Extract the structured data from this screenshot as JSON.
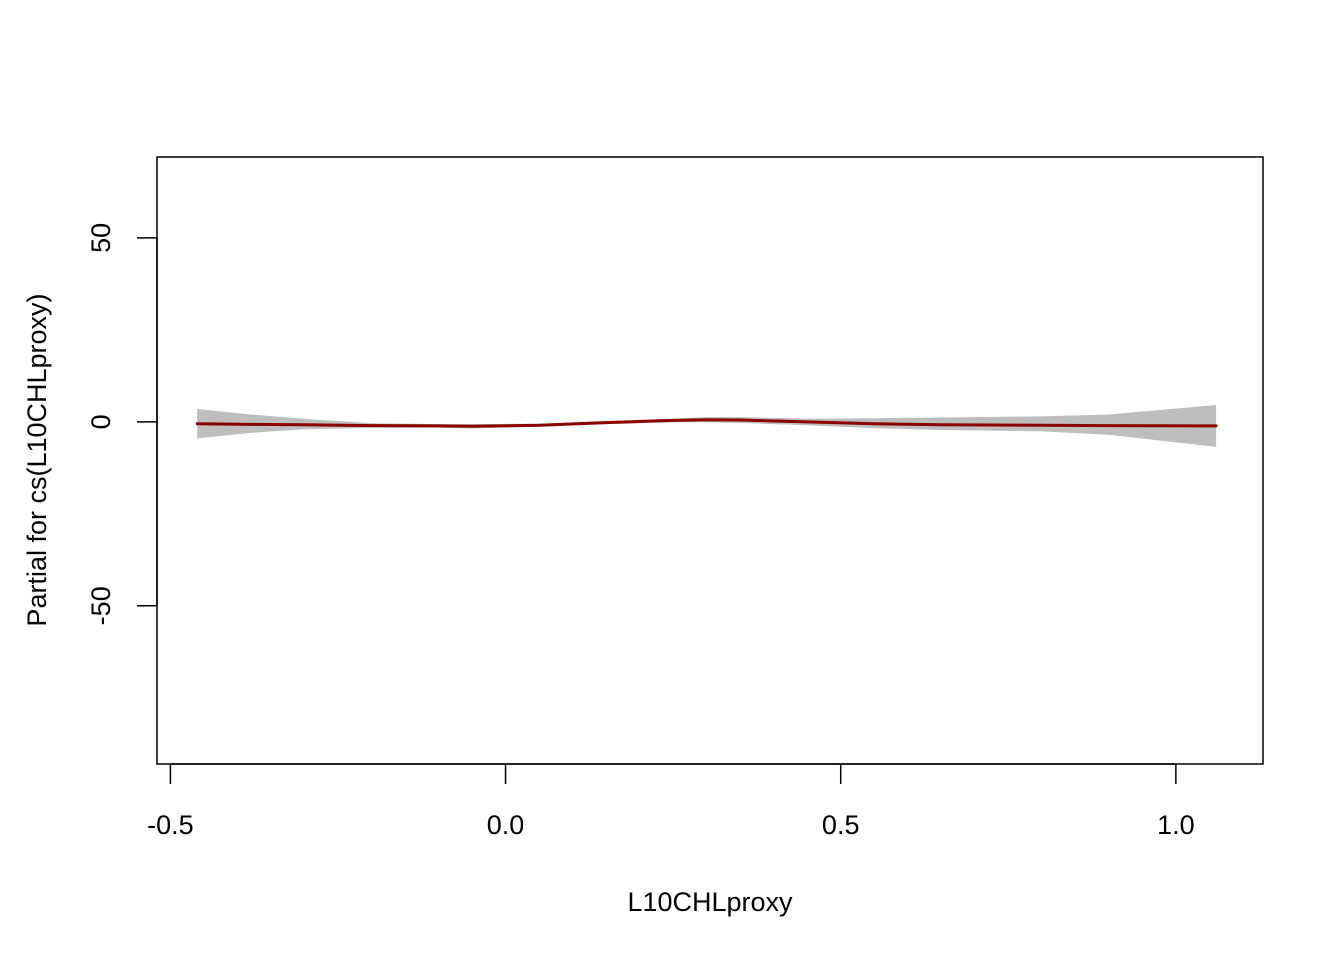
{
  "chart_data": {
    "type": "line",
    "title": "",
    "xlabel": "L10CHLproxy",
    "ylabel": "Partial for cs(L10CHLproxy)",
    "xlim": [
      -0.52,
      1.13
    ],
    "ylim": [
      -93,
      72
    ],
    "xticks": [
      -0.5,
      0.0,
      0.5,
      1.0
    ],
    "xtick_labels": [
      "-0.5",
      "0.0",
      "0.5",
      "1.0"
    ],
    "yticks": [
      -50,
      0,
      50
    ],
    "ytick_labels": [
      "-50",
      "0",
      "50"
    ],
    "grid": false,
    "legend": "none",
    "colors": {
      "line": "#8b0000",
      "band": "#bebebe",
      "axis": "#000000"
    },
    "series": [
      {
        "x": [
          -0.46,
          -0.38,
          -0.3,
          -0.2,
          -0.1,
          -0.05,
          0.05,
          0.15,
          0.25,
          0.3,
          0.35,
          0.45,
          0.55,
          0.65,
          0.8,
          0.9,
          1.06
        ],
        "y": [
          -0.5,
          -0.7,
          -0.8,
          -1.0,
          -1.1,
          -1.2,
          -0.9,
          -0.2,
          0.4,
          0.6,
          0.5,
          0.0,
          -0.5,
          -0.8,
          -0.9,
          -1.0,
          -1.1
        ],
        "lower": [
          -4.5,
          -3.0,
          -2.0,
          -1.6,
          -1.6,
          -1.8,
          -1.3,
          -0.6,
          -0.1,
          -0.1,
          -0.3,
          -0.9,
          -1.7,
          -2.2,
          -2.6,
          -3.5,
          -6.8
        ],
        "upper": [
          3.5,
          2.0,
          0.8,
          -0.4,
          -0.6,
          -0.6,
          -0.5,
          0.2,
          0.9,
          1.3,
          1.3,
          0.9,
          1.0,
          1.2,
          1.5,
          2.0,
          4.6
        ]
      }
    ]
  }
}
